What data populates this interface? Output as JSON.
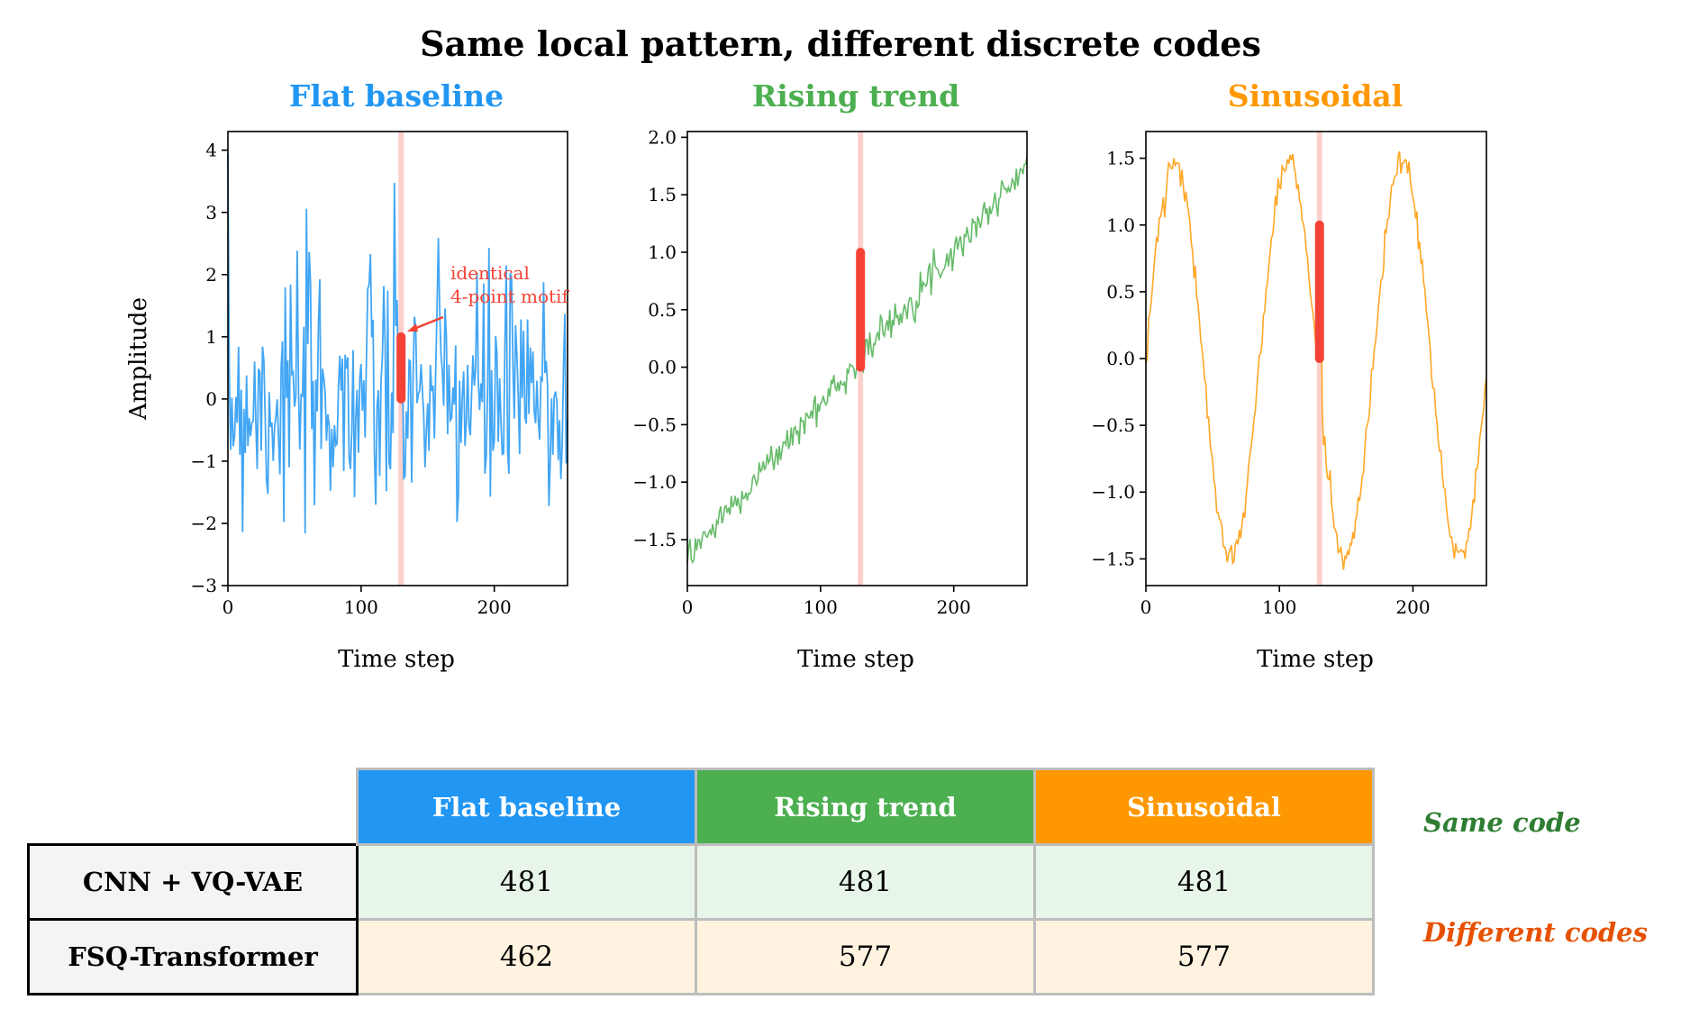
{
  "suptitle": "Same local pattern, different discrete codes",
  "chart_data": [
    {
      "type": "line",
      "title": "Flat baseline",
      "color": "#2196F3",
      "xlabel": "Time step",
      "ylabel": "Amplitude",
      "xlim": [
        0,
        255
      ],
      "ylim": [
        -3,
        4.3
      ],
      "xticks": [
        "0",
        "100",
        "200"
      ],
      "yticks": [
        "4",
        "3",
        "2",
        "1",
        "0",
        "−1",
        "−2",
        "−3"
      ],
      "pattern": "white noise around 0 (approx. range −2.7 to 4.0)",
      "highlight_x": 130,
      "motif": {
        "x": 130,
        "y_start": 0.0,
        "y_end": 1.0,
        "color": "#F44336"
      },
      "annotation": "identical\n4-point motif"
    },
    {
      "type": "line",
      "title": "Rising trend",
      "color": "#4CAF50",
      "xlabel": "Time step",
      "ylabel": "",
      "xlim": [
        0,
        255
      ],
      "ylim": [
        -1.9,
        2.05
      ],
      "xticks": [
        "0",
        "100",
        "200"
      ],
      "yticks": [
        "2.0",
        "1.5",
        "1.0",
        "0.5",
        "0.0",
        "−0.5",
        "−1.0",
        "−1.5"
      ],
      "pattern": "linear rise from about −1.65 to 1.75 with noise",
      "highlight_x": 130,
      "motif": {
        "x": 130,
        "y_start": 0.0,
        "y_end": 1.0,
        "color": "#F44336"
      }
    },
    {
      "type": "line",
      "title": "Sinusoidal",
      "color": "#FF9800",
      "xlabel": "Time step",
      "ylabel": "",
      "xlim": [
        0,
        255
      ],
      "ylim": [
        -1.7,
        1.7
      ],
      "xticks": [
        "0",
        "100",
        "200"
      ],
      "yticks": [
        "1.5",
        "1.0",
        "0.5",
        "0.0",
        "−0.5",
        "−1.0",
        "−1.5"
      ],
      "pattern": "sine wave, amplitude about 1.5, period about 85 steps",
      "highlight_x": 130,
      "motif": {
        "x": 130,
        "y_start": 0.0,
        "y_end": 1.0,
        "color": "#F44336"
      }
    }
  ],
  "table": {
    "columns": [
      {
        "label": "Flat baseline",
        "color": "#2196F3"
      },
      {
        "label": "Rising trend",
        "color": "#4CAF50"
      },
      {
        "label": "Sinusoidal",
        "color": "#FF9800"
      }
    ],
    "rows": [
      {
        "label": "CNN + VQ-VAE",
        "values": [
          "481",
          "481",
          "481"
        ],
        "fill": "#E8F5E9"
      },
      {
        "label": "FSQ-Transformer",
        "values": [
          "462",
          "577",
          "577"
        ],
        "fill": "#FFF3E0"
      }
    ]
  },
  "notes": [
    {
      "text": "Same code",
      "color": "#2E7D32"
    },
    {
      "text": "Different codes",
      "color": "#E65100"
    }
  ]
}
